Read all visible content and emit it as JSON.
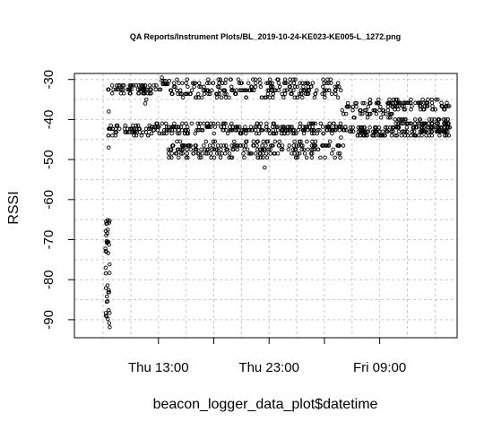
{
  "chart_data": {
    "type": "scatter",
    "title": "QA Reports/Instrument Plots/BL_2019-10-24-KE023-KE005-L_1272.png",
    "xlabel": "beacon_logger_data_plot$datetime",
    "ylabel": "RSSI",
    "x_unit": "hours since Thu 00:00",
    "xlim": [
      5.4,
      40.0
    ],
    "ylim": [
      -94.5,
      -28.5
    ],
    "x_ticks": [
      {
        "value": 13,
        "label": "Thu 13:00"
      },
      {
        "value": 18,
        "label": ""
      },
      {
        "value": 23,
        "label": "Thu 23:00"
      },
      {
        "value": 28,
        "label": ""
      },
      {
        "value": 33,
        "label": "Fri 09:00"
      }
    ],
    "y_ticks": [
      {
        "value": -30,
        "label": "-30"
      },
      {
        "value": -40,
        "label": "-40"
      },
      {
        "value": -50,
        "label": "-50"
      },
      {
        "value": -60,
        "label": "-60"
      },
      {
        "value": -70,
        "label": "-70"
      },
      {
        "value": -80,
        "label": "-80"
      },
      {
        "value": -90,
        "label": "-90"
      }
    ],
    "grid": true,
    "series": [
      {
        "points_description": "dense scatter of RSSI readings",
        "bands": [
          {
            "x": [
              8.4,
              13.2
            ],
            "y": [
              -33.5,
              -31.5
            ]
          },
          {
            "x": [
              13.2,
              14.0
            ],
            "y": [
              -32.0,
              -29.5
            ]
          },
          {
            "x": [
              14.0,
              29.6
            ],
            "y": [
              -34.5,
              -30.0
            ]
          },
          {
            "x": [
              29.6,
              34.3
            ],
            "y": [
              -39.5,
              -35.0
            ]
          },
          {
            "x": [
              34.3,
              39.4
            ],
            "y": [
              -37.5,
              -35.0
            ]
          },
          {
            "x": [
              8.4,
              12.3
            ],
            "y": [
              -44.0,
              -41.5
            ]
          },
          {
            "x": [
              12.3,
              30.0
            ],
            "y": [
              -43.5,
              -41.0
            ]
          },
          {
            "x": [
              30.0,
              39.4
            ],
            "y": [
              -44.0,
              -42.0
            ]
          },
          {
            "x": [
              13.9,
              29.6
            ],
            "y": [
              -49.5,
              -45.5
            ]
          },
          {
            "x": [
              34.3,
              39.4
            ],
            "y": [
              -42.0,
              -40.0
            ]
          }
        ],
        "early_dropout": {
          "x": [
            8.2,
            8.6
          ],
          "y": [
            -92.0,
            -65.0
          ]
        },
        "isolated_points": [
          {
            "x": 8.5,
            "y": -38.0
          },
          {
            "x": 8.5,
            "y": -47.0
          },
          {
            "x": 11.8,
            "y": -36.0
          },
          {
            "x": 11.9,
            "y": -35.0
          },
          {
            "x": 22.6,
            "y": -52.0
          },
          {
            "x": 22.0,
            "y": -49.5
          },
          {
            "x": 29.5,
            "y": -44.5
          },
          {
            "x": 29.7,
            "y": -46.5
          }
        ]
      }
    ]
  }
}
